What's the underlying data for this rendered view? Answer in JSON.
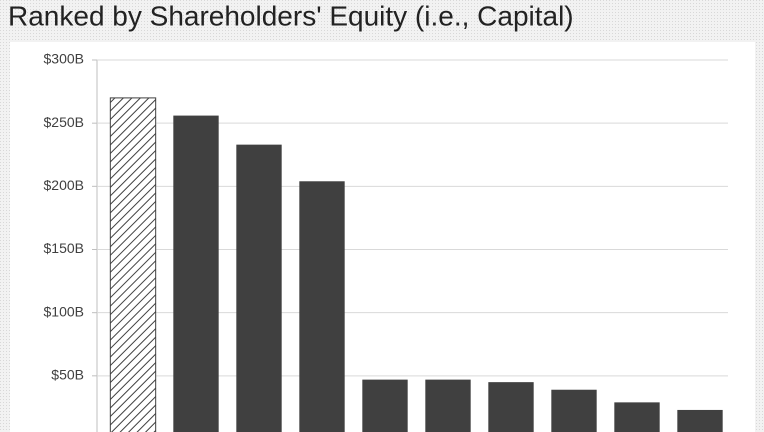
{
  "chart_data": {
    "type": "bar",
    "title": "Ranked by Shareholders' Equity (i.e., Capital)",
    "categories": [
      null,
      null,
      null,
      null,
      null,
      null,
      null,
      null,
      null,
      null
    ],
    "values": [
      270,
      256,
      233,
      204,
      47,
      47,
      45,
      39,
      29,
      23
    ],
    "colors": [
      "hatched",
      "#404040",
      "#404040",
      "#404040",
      "#404040",
      "#404040",
      "#404040",
      "#404040",
      "#404040",
      "#404040"
    ],
    "ylim": [
      0,
      300
    ],
    "yticks": [
      {
        "value": 50,
        "label": "$50B"
      },
      {
        "value": 100,
        "label": "$100B"
      },
      {
        "value": 150,
        "label": "$150B"
      },
      {
        "value": 200,
        "label": "$200B"
      },
      {
        "value": 250,
        "label": "$250B"
      },
      {
        "value": 300,
        "label": "$300B"
      }
    ],
    "grid": true
  }
}
